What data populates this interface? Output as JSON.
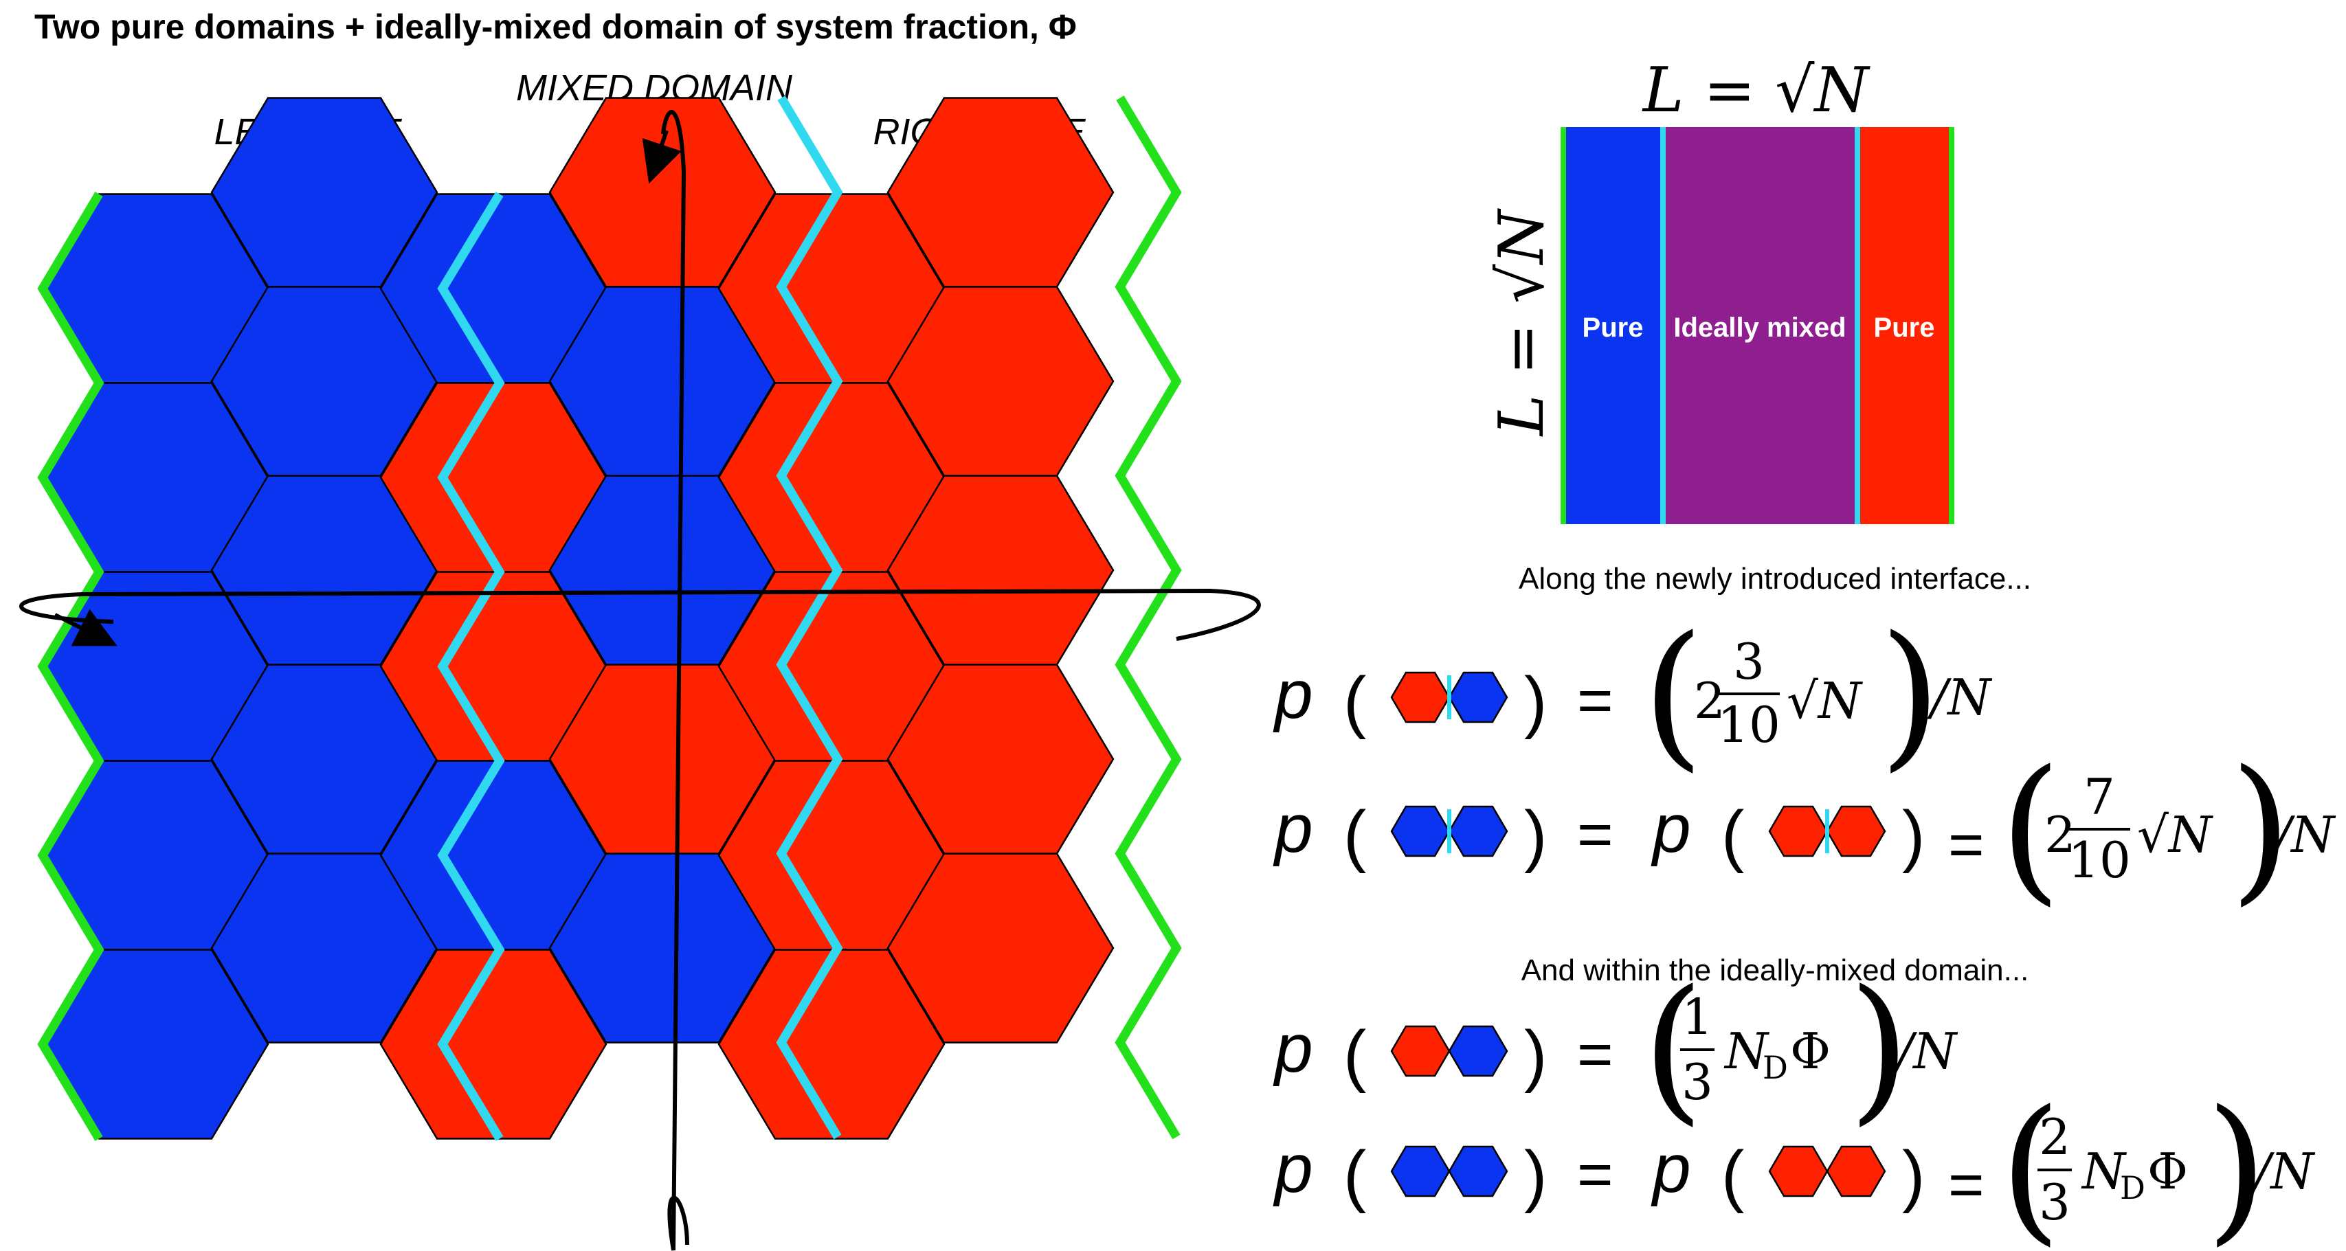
{
  "title": "Two pure domains + ideally-mixed domain of system fraction, Φ",
  "labels": {
    "left_side": "LEFT SIDE",
    "mixed_domain": "MIXED DOMAIN",
    "right_side": "RIGHT SIDE"
  },
  "colors": {
    "blue": "#0b34f0",
    "red": "#ff2200",
    "purple": "#8f1f8f",
    "green": "#22e01a",
    "cyan": "#30d8f0"
  },
  "lattice": {
    "columns": [
      [
        "blue",
        "blue",
        "blue",
        "blue",
        "blue"
      ],
      [
        "blue",
        "blue",
        "blue",
        "blue",
        "blue"
      ],
      [
        "blue",
        "red",
        "red",
        "blue",
        "red"
      ],
      [
        "red",
        "blue",
        "blue",
        "red",
        "blue"
      ],
      [
        "red",
        "red",
        "red",
        "red",
        "red"
      ],
      [
        "red",
        "red",
        "red",
        "red",
        "red"
      ]
    ]
  },
  "schematic": {
    "length_top": "L = √N",
    "length_left": "L = √N",
    "regions": [
      "Pure",
      "Ideally mixed",
      "Pure"
    ]
  },
  "captions": {
    "interface": "Along the newly introduced interface...",
    "within": "And within the ideally-mixed domain..."
  },
  "equations": {
    "p": "p",
    "open": "(",
    "close": ")",
    "eq": "=",
    "times": "/N",
    "interface_mixed": {
      "whole": "2",
      "num": "3",
      "den": "10",
      "root": "√N"
    },
    "interface_same": {
      "whole": "2",
      "num": "7",
      "den": "10",
      "root": "√N"
    },
    "domain_mixed": {
      "num": "1",
      "den": "3",
      "body": "N",
      "sub": "D",
      "phi": "Φ"
    },
    "domain_same": {
      "num": "2",
      "den": "3",
      "body": "N",
      "sub": "D",
      "phi": "Φ"
    }
  }
}
